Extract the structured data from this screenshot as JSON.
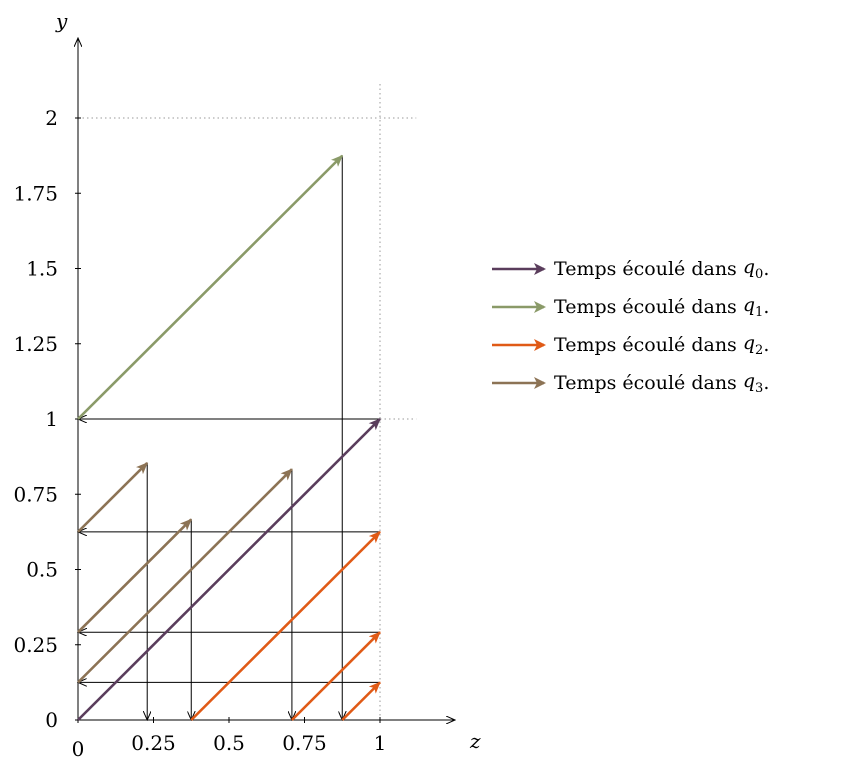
{
  "axes": {
    "x_label": "z",
    "y_label": "y",
    "x_ticks": [
      "0",
      "0.25",
      "0.5",
      "0.75",
      "1"
    ],
    "y_ticks": [
      "0",
      "0.25",
      "0.5",
      "0.75",
      "1",
      "1.25",
      "1.5",
      "1.75",
      "2"
    ]
  },
  "colors": {
    "q0": "#5a3d5c",
    "q1": "#8a9a68",
    "q2": "#e05a16",
    "q3": "#8c7355",
    "jump": "#000000",
    "guide": "#9a9a9a"
  },
  "legend": [
    {
      "text": "Temps écoulé dans",
      "var": "q",
      "sub": "0",
      "suffix": ".",
      "color": "#5a3d5c"
    },
    {
      "text": "Temps écoulé dans",
      "var": "q",
      "sub": "1",
      "suffix": ".",
      "color": "#8a9a68"
    },
    {
      "text": "Temps écoulé dans",
      "var": "q",
      "sub": "2",
      "suffix": ".",
      "color": "#e05a16"
    },
    {
      "text": "Temps écoulé dans",
      "var": "q",
      "sub": "3",
      "suffix": ".",
      "color": "#8c7355"
    }
  ],
  "diagram_data": {
    "flows": [
      {
        "state": "q0",
        "from": [
          0,
          0
        ],
        "to": [
          1,
          1
        ]
      },
      {
        "state": "q1",
        "from": [
          0,
          1
        ],
        "to": [
          0.875,
          1.875
        ]
      },
      {
        "state": "q2",
        "from": [
          0.375,
          0
        ],
        "to": [
          1,
          0.625
        ]
      },
      {
        "state": "q2",
        "from": [
          0.70833,
          0
        ],
        "to": [
          1,
          0.29167
        ]
      },
      {
        "state": "q2",
        "from": [
          0.875,
          0
        ],
        "to": [
          1,
          0.125
        ]
      },
      {
        "state": "q3",
        "from": [
          0,
          0.625
        ],
        "to": [
          0.22917,
          0.85417
        ]
      },
      {
        "state": "q3",
        "from": [
          0,
          0.29167
        ],
        "to": [
          0.375,
          0.66667
        ]
      },
      {
        "state": "q3",
        "from": [
          0,
          0.125
        ],
        "to": [
          0.70833,
          0.83333
        ]
      }
    ],
    "jumps": [
      {
        "from": [
          1,
          1
        ],
        "to": [
          0,
          1
        ]
      },
      {
        "from": [
          0.875,
          1.875
        ],
        "to": [
          0.875,
          0
        ]
      },
      {
        "from": [
          1,
          0.625
        ],
        "to": [
          0,
          0.625
        ]
      },
      {
        "from": [
          1,
          0.29167
        ],
        "to": [
          0,
          0.29167
        ]
      },
      {
        "from": [
          1,
          0.125
        ],
        "to": [
          0,
          0.125
        ]
      },
      {
        "from": [
          0.22917,
          0.85417
        ],
        "to": [
          0.22917,
          0
        ]
      },
      {
        "from": [
          0.375,
          0.66667
        ],
        "to": [
          0.375,
          0
        ]
      },
      {
        "from": [
          0.70833,
          0.83333
        ],
        "to": [
          0.70833,
          0
        ]
      }
    ],
    "guides": [
      {
        "from": [
          0,
          2
        ],
        "to": [
          1.12,
          2
        ]
      },
      {
        "from": [
          1,
          1
        ],
        "to": [
          1.12,
          1
        ]
      },
      {
        "from": [
          1,
          0
        ],
        "to": [
          1,
          2.12
        ]
      }
    ]
  }
}
